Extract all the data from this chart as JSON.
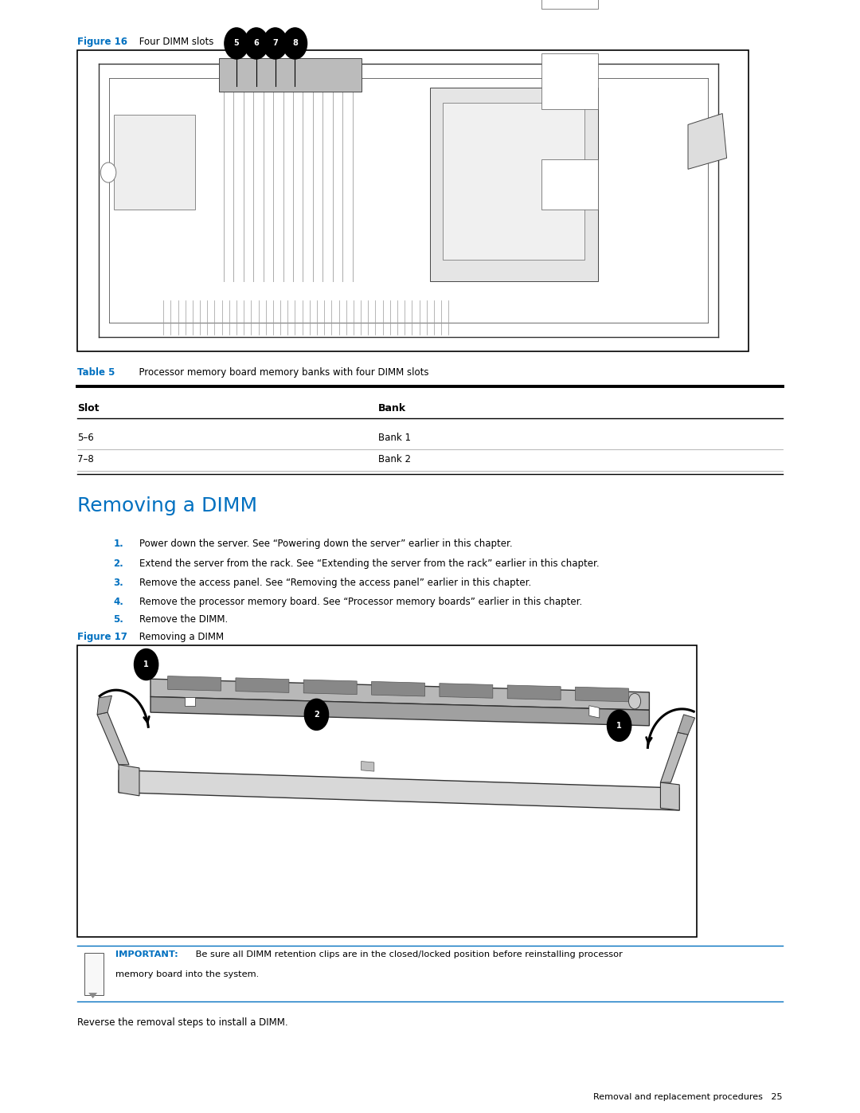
{
  "page_bg": "#ffffff",
  "blue_color": "#0070C0",
  "black_color": "#000000",
  "fig16_caption_bold": "Figure 16",
  "fig16_caption_rest": " Four DIMM slots",
  "table5_caption_bold": "Table 5",
  "table5_caption_rest": "  Processor memory board memory banks with four DIMM slots",
  "table_col1_header": "Slot",
  "table_col2_header": "Bank",
  "table_rows": [
    [
      "5–6",
      "Bank 1"
    ],
    [
      "7–8",
      "Bank 2"
    ]
  ],
  "section_title": "Removing a DIMM",
  "steps": [
    {
      "num": "1.",
      "text": "Power down the server. See “Powering down the server” earlier in this chapter."
    },
    {
      "num": "2.",
      "text": "Extend the server from the rack. See “Extending the server from the rack” earlier in this chapter."
    },
    {
      "num": "3.",
      "text": "Remove the access panel. See “Removing the access panel” earlier in this chapter."
    },
    {
      "num": "4.",
      "text": "Remove the processor memory board. See “Processor memory boards” earlier in this chapter."
    },
    {
      "num": "5.",
      "text": "Remove the DIMM."
    }
  ],
  "fig17_caption_bold": "Figure 17",
  "fig17_caption_rest": " Removing a DIMM",
  "important_label": "IMPORTANT:",
  "important_text": " Be sure all DIMM retention clips are in the closed/locked position before reinstalling processor",
  "important_text2": "memory board into the system.",
  "footer_text": "Reverse the removal steps to install a DIMM.",
  "page_footer": "Removal and replacement procedures   25",
  "ml": 0.09,
  "mr": 0.91
}
